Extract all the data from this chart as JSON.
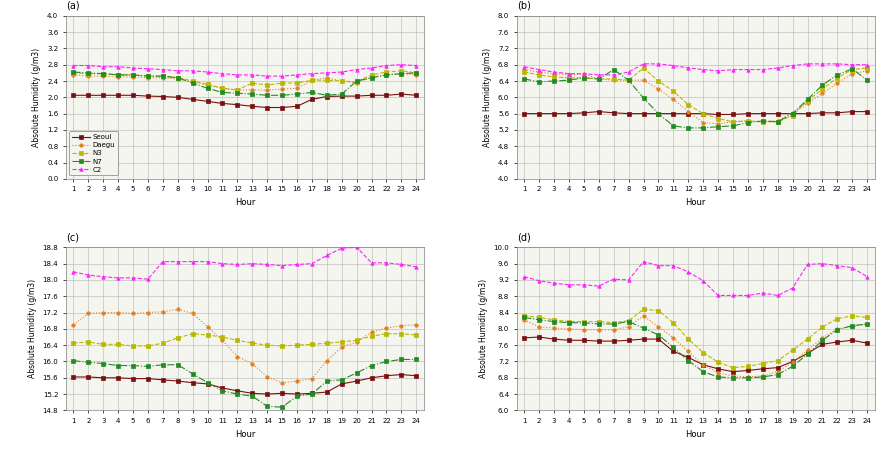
{
  "hours": [
    1,
    2,
    3,
    4,
    5,
    6,
    7,
    8,
    9,
    10,
    11,
    12,
    13,
    14,
    15,
    16,
    17,
    18,
    19,
    20,
    21,
    22,
    23,
    24
  ],
  "panel_a": {
    "title": "(a)",
    "ylim": [
      0.0,
      4.0
    ],
    "yticks": [
      0.0,
      0.4,
      0.8,
      1.2,
      1.6,
      2.0,
      2.4,
      2.8,
      3.2,
      3.6,
      4.0
    ],
    "ylabel": "Absolute Humidity (g/m3)",
    "Seoul": [
      2.05,
      2.05,
      2.05,
      2.05,
      2.05,
      2.03,
      2.02,
      2.0,
      1.95,
      1.9,
      1.85,
      1.82,
      1.78,
      1.75,
      1.75,
      1.78,
      1.95,
      2.02,
      2.03,
      2.03,
      2.05,
      2.05,
      2.08,
      2.05
    ],
    "Daegu": [
      2.55,
      2.52,
      2.52,
      2.5,
      2.5,
      2.48,
      2.48,
      2.45,
      2.38,
      2.3,
      2.22,
      2.18,
      2.18,
      2.18,
      2.2,
      2.22,
      2.42,
      2.48,
      2.4,
      2.35,
      2.5,
      2.55,
      2.58,
      2.55
    ],
    "N3": [
      2.6,
      2.58,
      2.58,
      2.55,
      2.55,
      2.52,
      2.52,
      2.48,
      2.4,
      2.32,
      2.22,
      2.18,
      2.35,
      2.3,
      2.35,
      2.35,
      2.42,
      2.42,
      2.4,
      2.38,
      2.55,
      2.62,
      2.65,
      2.6
    ],
    "N7": [
      2.62,
      2.6,
      2.58,
      2.55,
      2.55,
      2.52,
      2.52,
      2.48,
      2.35,
      2.22,
      2.12,
      2.1,
      2.08,
      2.05,
      2.05,
      2.08,
      2.12,
      2.05,
      2.08,
      2.4,
      2.48,
      2.55,
      2.58,
      2.6
    ],
    "C2": [
      2.78,
      2.78,
      2.75,
      2.75,
      2.72,
      2.7,
      2.68,
      2.65,
      2.65,
      2.62,
      2.58,
      2.55,
      2.55,
      2.52,
      2.52,
      2.55,
      2.58,
      2.6,
      2.62,
      2.68,
      2.72,
      2.78,
      2.8,
      2.78
    ]
  },
  "panel_b": {
    "title": "(b)",
    "ylim": [
      4.0,
      8.0
    ],
    "yticks": [
      4.0,
      4.4,
      4.8,
      5.2,
      5.6,
      6.0,
      6.4,
      6.8,
      7.2,
      7.6,
      8.0
    ],
    "ylabel": "Absolute Humidity (g/m3)",
    "Seoul": [
      5.6,
      5.6,
      5.6,
      5.6,
      5.62,
      5.65,
      5.62,
      5.6,
      5.6,
      5.6,
      5.6,
      5.6,
      5.6,
      5.58,
      5.58,
      5.6,
      5.6,
      5.6,
      5.6,
      5.6,
      5.62,
      5.62,
      5.65,
      5.65
    ],
    "Daegu": [
      6.68,
      6.62,
      6.58,
      6.55,
      6.58,
      6.45,
      6.42,
      6.42,
      6.42,
      6.2,
      5.95,
      5.65,
      5.38,
      5.35,
      5.4,
      5.42,
      5.4,
      5.42,
      5.62,
      5.85,
      6.1,
      6.35,
      6.58,
      6.65
    ],
    "N3": [
      6.62,
      6.55,
      6.5,
      6.48,
      6.48,
      6.45,
      6.45,
      6.42,
      6.72,
      6.4,
      6.15,
      5.82,
      5.6,
      5.48,
      5.4,
      5.42,
      5.4,
      5.4,
      5.55,
      5.92,
      6.2,
      6.48,
      6.68,
      6.72
    ],
    "N7": [
      6.45,
      6.38,
      6.4,
      6.42,
      6.48,
      6.45,
      6.68,
      6.42,
      5.98,
      5.6,
      5.3,
      5.25,
      5.25,
      5.28,
      5.3,
      5.38,
      5.42,
      5.4,
      5.6,
      5.95,
      6.3,
      6.55,
      6.7,
      6.42
    ],
    "C2": [
      6.75,
      6.68,
      6.62,
      6.58,
      6.58,
      6.55,
      6.55,
      6.62,
      6.82,
      6.82,
      6.78,
      6.72,
      6.68,
      6.65,
      6.68,
      6.68,
      6.68,
      6.72,
      6.78,
      6.82,
      6.82,
      6.82,
      6.8,
      6.8
    ]
  },
  "panel_c": {
    "title": "(c)",
    "ylim": [
      14.8,
      18.8
    ],
    "yticks": [
      14.8,
      15.2,
      15.6,
      16.0,
      16.4,
      16.8,
      17.2,
      17.6,
      18.0,
      18.4,
      18.8
    ],
    "ylabel": "Absolute Humidity (g/m3)",
    "Seoul": [
      15.62,
      15.62,
      15.6,
      15.6,
      15.58,
      15.58,
      15.55,
      15.52,
      15.48,
      15.45,
      15.35,
      15.28,
      15.22,
      15.2,
      15.22,
      15.2,
      15.22,
      15.25,
      15.45,
      15.52,
      15.6,
      15.65,
      15.68,
      15.65
    ],
    "Daegu": [
      16.9,
      17.18,
      17.2,
      17.2,
      17.18,
      17.2,
      17.22,
      17.28,
      17.18,
      16.85,
      16.52,
      16.12,
      15.95,
      15.62,
      15.48,
      15.52,
      15.58,
      16.02,
      16.35,
      16.48,
      16.72,
      16.82,
      16.88,
      16.9
    ],
    "N3": [
      16.45,
      16.48,
      16.42,
      16.42,
      16.38,
      16.38,
      16.45,
      16.58,
      16.68,
      16.65,
      16.6,
      16.52,
      16.45,
      16.4,
      16.38,
      16.4,
      16.42,
      16.45,
      16.48,
      16.52,
      16.62,
      16.68,
      16.68,
      16.65
    ],
    "N7": [
      16.02,
      15.98,
      15.95,
      15.9,
      15.9,
      15.88,
      15.92,
      15.92,
      15.7,
      15.48,
      15.28,
      15.2,
      15.15,
      14.9,
      14.88,
      15.15,
      15.2,
      15.52,
      15.55,
      15.72,
      15.9,
      16.0,
      16.05,
      16.05
    ],
    "C2": [
      18.2,
      18.12,
      18.08,
      18.05,
      18.05,
      18.02,
      18.45,
      18.45,
      18.45,
      18.45,
      18.4,
      18.38,
      18.4,
      18.38,
      18.35,
      18.38,
      18.4,
      18.6,
      18.78,
      18.8,
      18.42,
      18.42,
      18.38,
      18.32
    ]
  },
  "panel_d": {
    "title": "(d)",
    "ylim": [
      6.0,
      10.0
    ],
    "yticks": [
      6.0,
      6.4,
      6.8,
      7.2,
      7.6,
      8.0,
      8.4,
      8.8,
      9.2,
      9.6,
      10.0
    ],
    "ylabel": "Absolute Humidity (g/m3)",
    "Seoul": [
      7.78,
      7.8,
      7.75,
      7.72,
      7.72,
      7.7,
      7.7,
      7.72,
      7.75,
      7.75,
      7.45,
      7.3,
      7.12,
      7.02,
      6.95,
      6.98,
      7.02,
      7.05,
      7.2,
      7.4,
      7.62,
      7.68,
      7.72,
      7.65
    ],
    "Daegu": [
      8.22,
      8.05,
      8.02,
      8.0,
      7.98,
      7.98,
      7.98,
      8.05,
      8.32,
      8.05,
      7.78,
      7.45,
      7.12,
      6.92,
      6.85,
      6.82,
      6.85,
      6.95,
      7.18,
      7.48,
      7.78,
      8.0,
      8.05,
      8.12
    ],
    "N3": [
      8.32,
      8.28,
      8.22,
      8.18,
      8.18,
      8.18,
      8.15,
      8.2,
      8.48,
      8.45,
      8.15,
      7.75,
      7.42,
      7.18,
      7.05,
      7.08,
      7.15,
      7.22,
      7.48,
      7.75,
      8.05,
      8.25,
      8.32,
      8.28
    ],
    "N7": [
      8.28,
      8.22,
      8.18,
      8.15,
      8.15,
      8.12,
      8.12,
      8.18,
      8.02,
      7.85,
      7.55,
      7.22,
      6.95,
      6.82,
      6.8,
      6.8,
      6.82,
      6.88,
      7.08,
      7.38,
      7.72,
      7.98,
      8.08,
      8.12
    ],
    "C2": [
      9.28,
      9.18,
      9.12,
      9.08,
      9.08,
      9.05,
      9.22,
      9.2,
      9.65,
      9.55,
      9.55,
      9.4,
      9.18,
      8.82,
      8.82,
      8.82,
      8.88,
      8.82,
      9.0,
      9.58,
      9.6,
      9.55,
      9.5,
      9.28
    ]
  },
  "colors": {
    "Seoul": "#7B1010",
    "Daegu": "#E08020",
    "N3": "#B8B800",
    "N7": "#228B22",
    "C2": "#FF20FF"
  },
  "linestyles": {
    "Seoul": "-",
    "Daegu": ":",
    "N3": "--",
    "N7": "-.",
    "C2": "--"
  },
  "markers": {
    "Seoul": "s",
    "Daegu": "o",
    "N3": "s",
    "N7": "s",
    "C2": "^"
  },
  "markerfacecolors": {
    "Seoul": "#7B1010",
    "Daegu": "#E08020",
    "N3": "#B8B800",
    "N7": "#228B22",
    "C2": "#FF20FF"
  }
}
